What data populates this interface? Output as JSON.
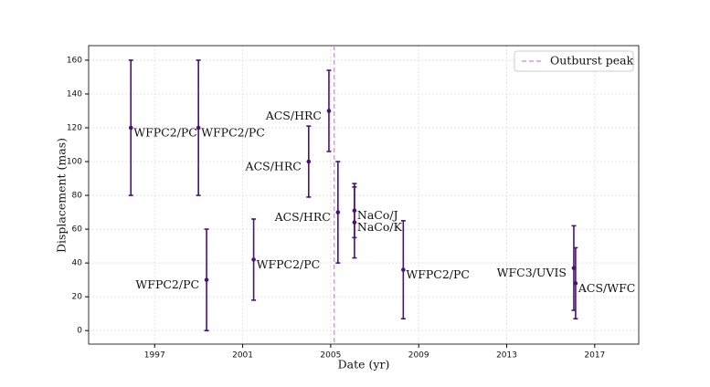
{
  "chart_data": {
    "type": "errorbar",
    "xlabel": "Date (yr)",
    "ylabel": "Displacement (mas)",
    "x": [
      1995.92,
      1998.99,
      1999.36,
      2001.5,
      2004.0,
      2004.92,
      2005.33,
      2006.08,
      2006.08,
      2008.3,
      2016.05,
      2016.13
    ],
    "values": [
      120,
      120,
      30,
      42,
      100,
      130,
      70,
      71,
      64,
      36,
      37,
      28
    ],
    "errors": [
      40,
      40,
      30,
      24,
      21,
      24,
      30,
      16,
      21,
      29,
      25,
      21
    ],
    "point_labels": [
      "WFPC2/PC",
      "WFPC2/PC",
      "WFPC2/PC",
      "WFPC2/PC",
      "ACS/HRC",
      "ACS/HRC",
      "ACS/HRC",
      "NaCo/J",
      "NaCo/K",
      "WFPC2/PC",
      "WFC3/UVIS",
      "ACS/WFC"
    ],
    "color": "#4b0f7a",
    "vline": {
      "x": 2005.16,
      "label": "Outburst peak",
      "color": "#e377e0"
    },
    "xlim": [
      1994.0,
      2019.0
    ],
    "ylim": [
      -8,
      168.6
    ],
    "xticks": [
      1997,
      2001,
      2005,
      2009,
      2013,
      2017
    ],
    "yticks": [
      0,
      20,
      40,
      60,
      80,
      100,
      120,
      140,
      160
    ],
    "grid": true,
    "legend": "upper right"
  }
}
